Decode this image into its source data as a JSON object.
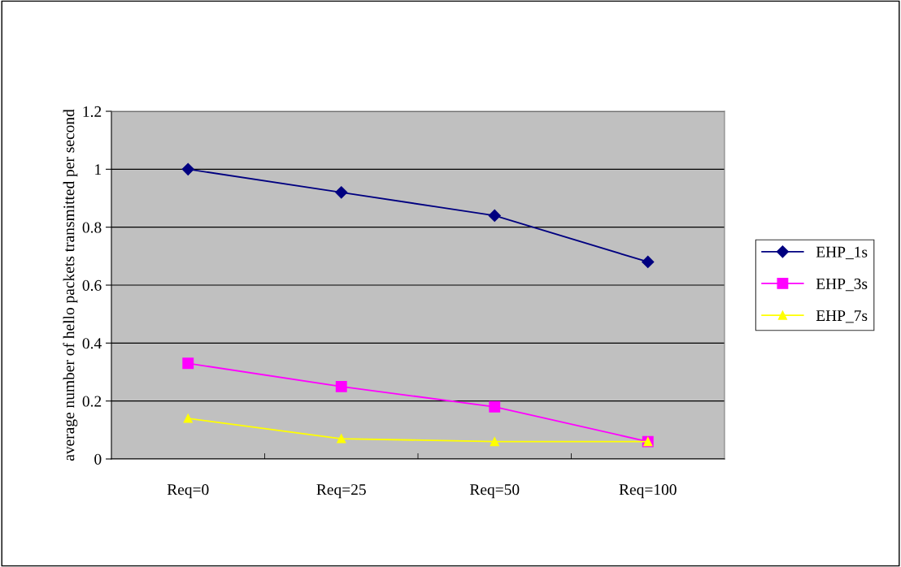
{
  "chart_data": {
    "type": "line",
    "ylabel": "average number of hello packets transmitted per second",
    "categories": [
      "Req=0",
      "Req=25",
      "Req=50",
      "Req=100"
    ],
    "series": [
      {
        "name": "EHP_1s",
        "color": "#000080",
        "values": [
          1.0,
          0.92,
          0.84,
          0.68
        ],
        "marker": "diamond"
      },
      {
        "name": "EHP_3s",
        "color": "#ff00ff",
        "values": [
          0.33,
          0.25,
          0.18,
          0.06
        ],
        "marker": "square"
      },
      {
        "name": "EHP_7s",
        "color": "#ffff00",
        "values": [
          0.14,
          0.07,
          0.06,
          0.06
        ],
        "marker": "triangle"
      }
    ],
    "ylim": [
      0,
      1.2
    ],
    "yticks": [
      0,
      0.2,
      0.4,
      0.6,
      0.8,
      1,
      1.2
    ],
    "grid": "y",
    "legend": "right",
    "line_style": "solid"
  }
}
